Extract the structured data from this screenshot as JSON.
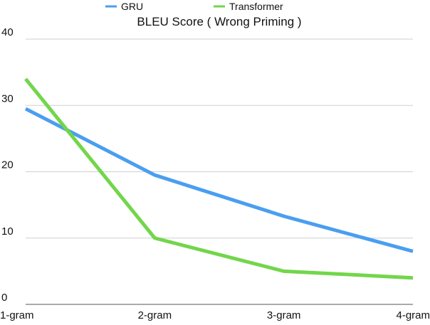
{
  "chart_data": {
    "type": "line",
    "title": "BLEU Score ( Wrong Priming )",
    "xlabel": "",
    "ylabel": "",
    "categories": [
      "1-gram",
      "2-gram",
      "3-gram",
      "4-gram"
    ],
    "ylim": [
      0,
      40
    ],
    "yticks": [
      "0",
      "10",
      "20",
      "30",
      "40"
    ],
    "grid": true,
    "legend_position": "top",
    "series": [
      {
        "name": "GRU",
        "color": "#4a9ef0",
        "values": [
          29.5,
          19.5,
          13.3,
          8.0
        ]
      },
      {
        "name": "Transformer",
        "color": "#72d64b",
        "values": [
          34.0,
          10.0,
          5.0,
          4.0
        ]
      }
    ]
  }
}
